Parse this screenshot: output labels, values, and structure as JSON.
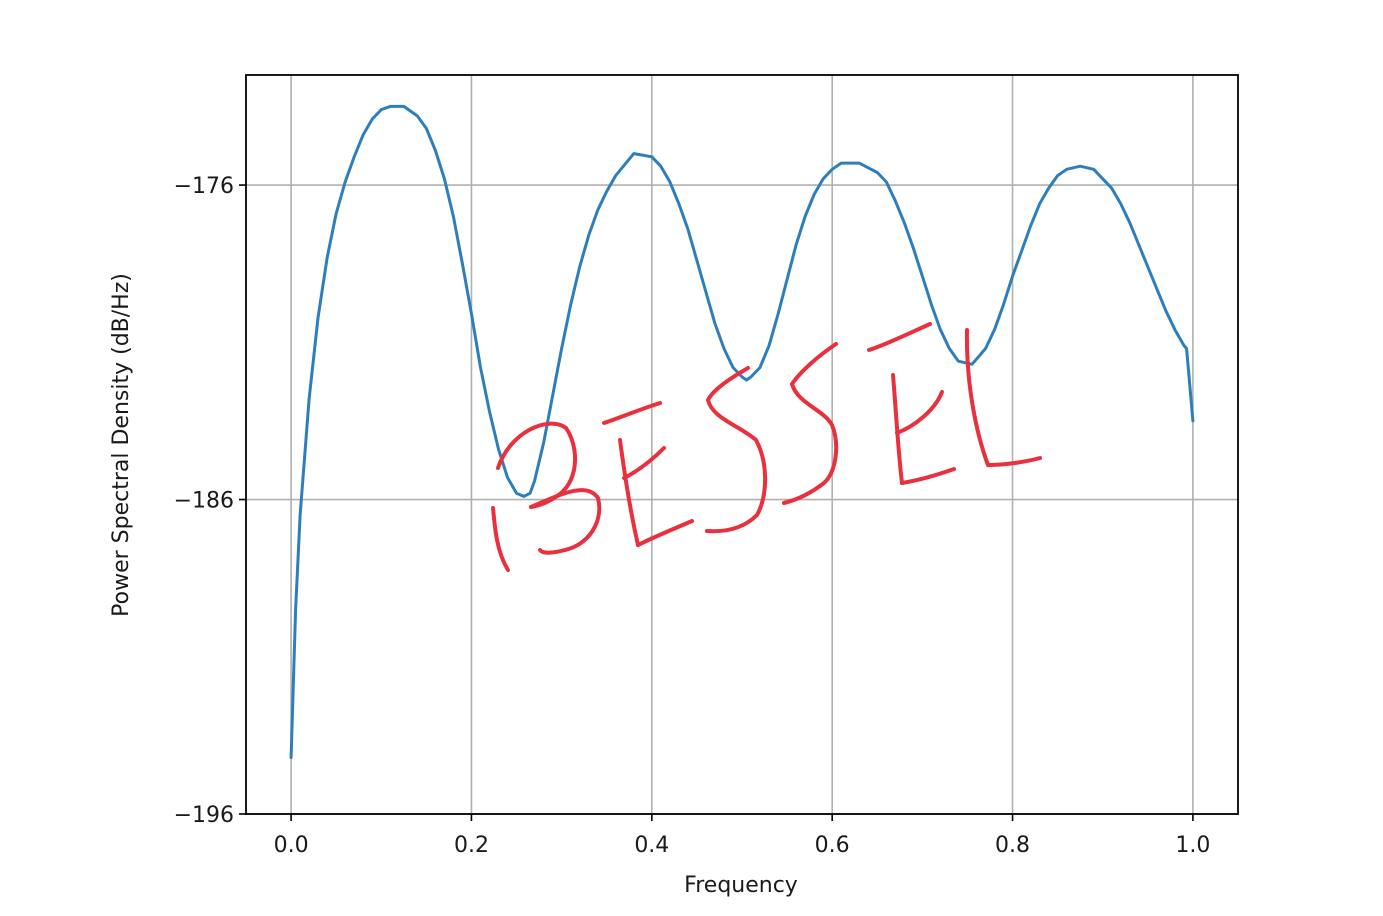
{
  "chart_data": {
    "type": "line",
    "title": "",
    "xlabel": "Frequency",
    "ylabel": "Power Spectral Density (dB/Hz)",
    "xlim": [
      -0.05,
      1.05
    ],
    "ylim": [
      -196,
      -172.5
    ],
    "xticks": [
      0.0,
      0.2,
      0.4,
      0.6,
      0.8,
      1.0
    ],
    "xtick_labels": [
      "0.0",
      "0.2",
      "0.4",
      "0.6",
      "0.8",
      "1.0"
    ],
    "yticks": [
      -196,
      -186,
      -176
    ],
    "ytick_labels": [
      "−196",
      "−186",
      "−176"
    ],
    "grid": true,
    "legend": "none",
    "series": [
      {
        "color": "#2e7ebc",
        "x": [
          0.0,
          0.005,
          0.01,
          0.02,
          0.03,
          0.04,
          0.05,
          0.06,
          0.07,
          0.08,
          0.09,
          0.1,
          0.11,
          0.125,
          0.14,
          0.15,
          0.16,
          0.17,
          0.18,
          0.19,
          0.2,
          0.21,
          0.22,
          0.23,
          0.24,
          0.25,
          0.258,
          0.265,
          0.27,
          0.28,
          0.29,
          0.3,
          0.31,
          0.32,
          0.33,
          0.34,
          0.35,
          0.36,
          0.38,
          0.4,
          0.41,
          0.42,
          0.43,
          0.44,
          0.45,
          0.46,
          0.47,
          0.48,
          0.49,
          0.5,
          0.505,
          0.51,
          0.52,
          0.53,
          0.54,
          0.55,
          0.56,
          0.57,
          0.58,
          0.59,
          0.6,
          0.61,
          0.63,
          0.65,
          0.66,
          0.67,
          0.68,
          0.69,
          0.7,
          0.71,
          0.72,
          0.73,
          0.74,
          0.755,
          0.77,
          0.78,
          0.79,
          0.8,
          0.81,
          0.82,
          0.83,
          0.84,
          0.85,
          0.86,
          0.875,
          0.89,
          0.9,
          0.91,
          0.92,
          0.93,
          0.94,
          0.95,
          0.96,
          0.97,
          0.98,
          0.99,
          0.993,
          1.0
        ],
        "y": [
          -194.2,
          -189.5,
          -186.5,
          -182.8,
          -180.2,
          -178.3,
          -176.9,
          -175.9,
          -175.1,
          -174.4,
          -173.9,
          -173.6,
          -173.5,
          -173.5,
          -173.8,
          -174.2,
          -174.9,
          -175.8,
          -177.0,
          -178.5,
          -180.1,
          -181.8,
          -183.2,
          -184.4,
          -185.3,
          -185.8,
          -185.9,
          -185.8,
          -185.4,
          -184.2,
          -182.7,
          -181.2,
          -179.8,
          -178.6,
          -177.6,
          -176.8,
          -176.2,
          -175.7,
          -175.0,
          -175.1,
          -175.4,
          -175.9,
          -176.6,
          -177.4,
          -178.4,
          -179.4,
          -180.4,
          -181.2,
          -181.8,
          -182.1,
          -182.2,
          -182.1,
          -181.8,
          -181.1,
          -180.1,
          -179.0,
          -177.9,
          -177.0,
          -176.3,
          -175.8,
          -175.5,
          -175.3,
          -175.3,
          -175.6,
          -175.9,
          -176.5,
          -177.2,
          -178.0,
          -178.9,
          -179.8,
          -180.6,
          -181.2,
          -181.6,
          -181.7,
          -181.2,
          -180.6,
          -179.8,
          -178.9,
          -178.1,
          -177.3,
          -176.6,
          -176.1,
          -175.7,
          -175.5,
          -175.4,
          -175.5,
          -175.8,
          -176.1,
          -176.6,
          -177.2,
          -177.9,
          -178.6,
          -179.3,
          -180.0,
          -180.6,
          -181.1,
          -181.2,
          -183.5
        ]
      }
    ]
  },
  "annotation": {
    "handwritten_text": "BESSEL",
    "color": "#e8303e"
  }
}
